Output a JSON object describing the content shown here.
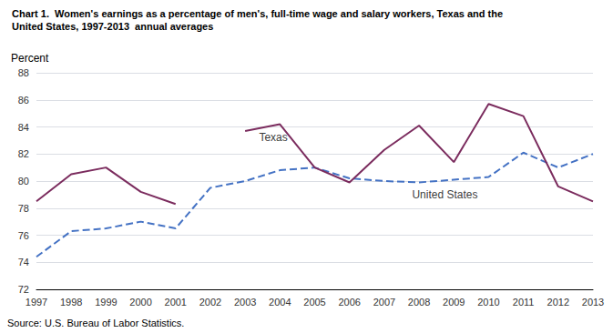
{
  "chart_data": {
    "type": "line",
    "title": "Chart 1.  Women's earnings as a percentage of men's, full-time wage and salary workers, Texas and the",
    "subtitle": "United States, 1997-2013  annual averages",
    "y_label": "Percent",
    "source": "Source: U.S. Bureau of Labor Statistics.",
    "x": [
      1997,
      1998,
      1999,
      2000,
      2001,
      2002,
      2003,
      2004,
      2005,
      2006,
      2007,
      2008,
      2009,
      2010,
      2011,
      2012,
      2013
    ],
    "series": [
      {
        "name": "United States",
        "color": "#4472C4",
        "line_style": "dashed",
        "values": [
          74.4,
          76.3,
          76.5,
          77.0,
          76.5,
          79.5,
          80.0,
          80.8,
          81.0,
          80.2,
          80.0,
          79.9,
          80.1,
          80.3,
          82.1,
          81.0,
          82.0
        ]
      },
      {
        "name": "Texas",
        "color": "#7B2C5E",
        "line_style": "solid",
        "values": [
          78.5,
          80.5,
          81.0,
          79.2,
          78.3,
          null,
          83.7,
          84.2,
          81.0,
          79.9,
          82.3,
          84.1,
          81.4,
          85.7,
          84.8,
          79.6,
          78.5
        ]
      }
    ],
    "annotations": [
      {
        "text": "Texas",
        "x": 2003.4,
        "y": 83.2
      },
      {
        "text": "United States",
        "x": 2007.8,
        "y": 79.0
      }
    ],
    "xlim": [
      1997,
      2013
    ],
    "xticks": [
      1997,
      1998,
      1999,
      2000,
      2001,
      2002,
      2003,
      2004,
      2005,
      2006,
      2007,
      2008,
      2009,
      2010,
      2011,
      2012,
      2013
    ],
    "ylim": [
      72,
      88
    ],
    "yticks": [
      72,
      74,
      76,
      78,
      80,
      82,
      84,
      86,
      88
    ],
    "grid": "y"
  }
}
